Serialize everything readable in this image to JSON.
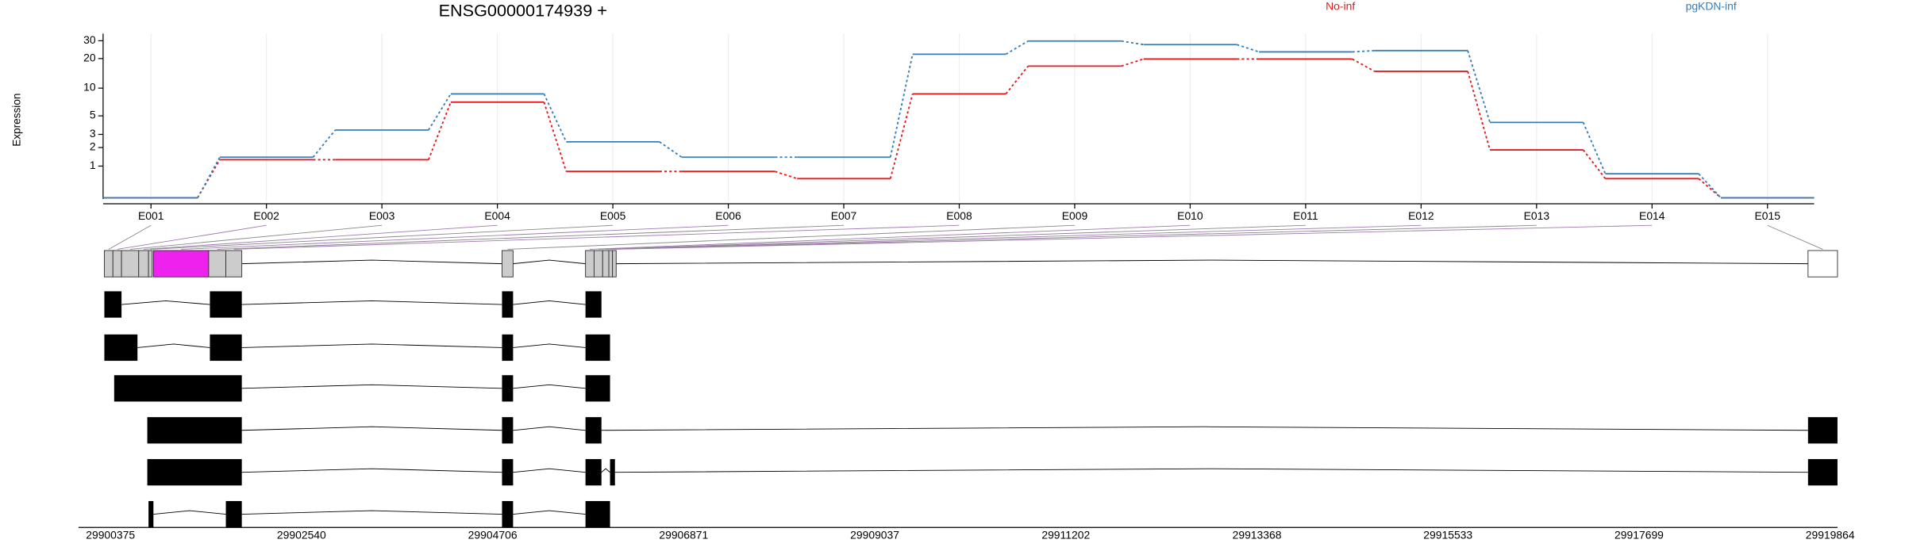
{
  "chart_data": {
    "type": "line",
    "title": "ENSG00000174939 +",
    "y_label": "Expression",
    "categories": [
      "E001",
      "E002",
      "E003",
      "E004",
      "E005",
      "E006",
      "E007",
      "E008",
      "E009",
      "E010",
      "E011",
      "E012",
      "E013",
      "E014",
      "E015"
    ],
    "series": [
      {
        "name": "No-inf",
        "color": "#e41a1c",
        "values": [
          0,
          1.3,
          1.3,
          7.1,
          0.78,
          0.78,
          0.52,
          8.7,
          16.8,
          19.8,
          19.8,
          14.9,
          1.85,
          0.52,
          0
        ]
      },
      {
        "name": "pgKDN-inf",
        "color": "#377eb8",
        "values": [
          0,
          1.43,
          3.4,
          8.7,
          2.4,
          1.43,
          1.43,
          22.1,
          29.8,
          27.5,
          23.3,
          24,
          4.2,
          0.69,
          0
        ]
      }
    ],
    "yscale": "log1p",
    "ylim": [
      0,
      30
    ],
    "yticks": [
      1,
      2,
      3,
      5,
      10,
      20,
      30
    ],
    "grid": true,
    "genome_ticks": [
      29900375,
      29902540,
      29904706,
      29906871,
      29909037,
      29911202,
      29913368,
      29915533,
      29917699,
      29919864
    ]
  }
}
